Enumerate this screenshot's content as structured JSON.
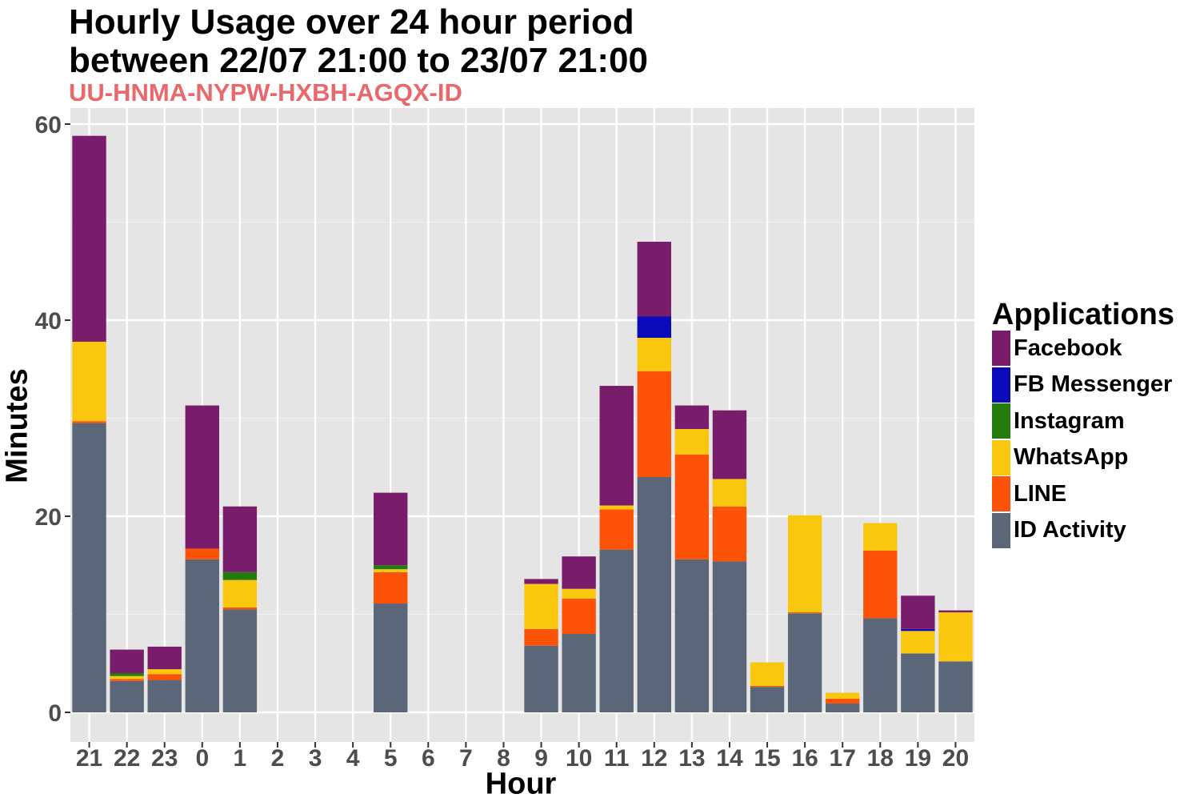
{
  "title_line1": "Hourly Usage over 24 hour period",
  "title_line2": "between 22/07 21:00 to 23/07 21:00",
  "subtitle": "UU-HNMA-NYPW-HXBH-AGQX-ID",
  "chart_data": {
    "type": "bar",
    "stacked": true,
    "xlabel": "Hour",
    "ylabel": "Minutes",
    "ylim": [
      -3,
      62
    ],
    "yticks": [
      0,
      20,
      40,
      60
    ],
    "grid": true,
    "legend_position": "right",
    "legend_title": "Applications",
    "categories": [
      "21",
      "22",
      "23",
      "0",
      "1",
      "2",
      "3",
      "4",
      "5",
      "6",
      "7",
      "8",
      "9",
      "10",
      "11",
      "12",
      "13",
      "14",
      "15",
      "16",
      "17",
      "18",
      "19",
      "20"
    ],
    "series": [
      {
        "name": "ID Activity",
        "color": "#5B6678",
        "values": [
          29.5,
          3.2,
          3.3,
          15.6,
          10.5,
          0,
          0,
          0,
          11.1,
          0,
          0,
          0,
          6.8,
          8.0,
          16.6,
          24.0,
          15.6,
          15.4,
          2.6,
          10.1,
          0.9,
          9.6,
          6.0,
          5.2
        ]
      },
      {
        "name": "LINE",
        "color": "#FD5308",
        "values": [
          0.2,
          0.2,
          0.6,
          1.1,
          0.2,
          0,
          0,
          0,
          3.2,
          0,
          0,
          0,
          1.7,
          3.6,
          4.1,
          10.8,
          10.7,
          5.6,
          0.1,
          0.1,
          0.5,
          6.9,
          0,
          0
        ]
      },
      {
        "name": "WhatsApp",
        "color": "#F9C80E",
        "values": [
          8.1,
          0.3,
          0.5,
          0,
          2.8,
          0,
          0,
          0,
          0.3,
          0,
          0,
          0,
          4.6,
          1.0,
          0.4,
          3.4,
          2.6,
          2.8,
          2.4,
          9.9,
          0.6,
          2.8,
          2.3,
          5.0
        ]
      },
      {
        "name": "Instagram",
        "color": "#237B0C",
        "values": [
          0,
          0.3,
          0,
          0,
          0.8,
          0,
          0,
          0,
          0.4,
          0,
          0,
          0,
          0,
          0,
          0,
          0,
          0,
          0,
          0,
          0,
          0,
          0,
          0,
          0
        ]
      },
      {
        "name": "FB Messenger",
        "color": "#0A0AB8",
        "values": [
          0,
          0,
          0,
          0,
          0,
          0,
          0,
          0,
          0,
          0,
          0,
          0,
          0,
          0,
          0,
          2.2,
          0,
          0,
          0,
          0,
          0,
          0,
          0.2,
          0
        ]
      },
      {
        "name": "Facebook",
        "color": "#791C6C",
        "values": [
          21.0,
          2.4,
          2.3,
          14.6,
          6.7,
          0,
          0,
          0,
          7.4,
          0,
          0,
          0,
          0.5,
          3.3,
          12.2,
          7.6,
          2.4,
          7.0,
          0,
          0,
          0,
          0,
          3.4,
          0.2
        ]
      }
    ]
  }
}
